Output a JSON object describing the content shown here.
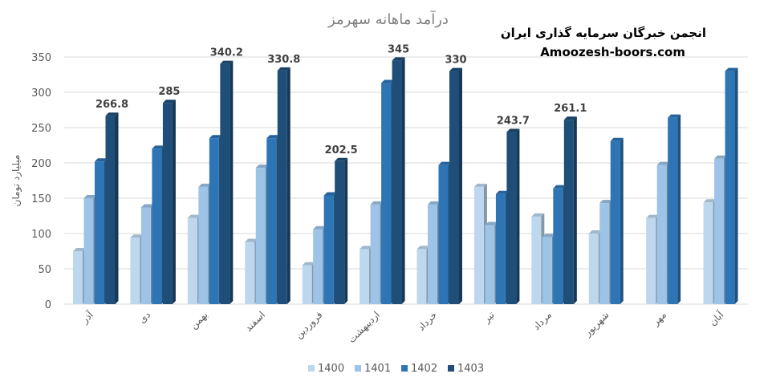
{
  "watermark": {
    "line1": "انجمن خبرگان سرمایه گذاری ایران",
    "line2": "Amoozesh-boors.com"
  },
  "chart_data": {
    "type": "bar",
    "title": "درآمد ماهانه سهرمز",
    "ylabel": "میلیارد تومان",
    "xlabel": "",
    "ylim": [
      0,
      350
    ],
    "yticks": [
      0,
      50,
      100,
      150,
      200,
      250,
      300,
      350
    ],
    "grid": true,
    "legend_position": "bottom",
    "categories": [
      "آذر",
      "دی",
      "بهمن",
      "اسفند",
      "فروردین",
      "اردیبهشت",
      "خرداد",
      "تیر",
      "مرداد",
      "شهریور",
      "مهر",
      "آبان"
    ],
    "series": [
      {
        "name": "1400",
        "color": "#bdd7ee",
        "values": [
          75,
          94,
          122,
          88,
          55,
          78,
          78,
          166,
          124,
          100,
          122,
          144
        ]
      },
      {
        "name": "1401",
        "color": "#9dc3e6",
        "values": [
          150,
          137,
          166,
          193,
          106,
          141,
          141,
          112,
          95,
          143,
          197,
          206
        ]
      },
      {
        "name": "1402",
        "color": "#2e75b6",
        "values": [
          202,
          220,
          235,
          235,
          154,
          313,
          197,
          156,
          164,
          231,
          264,
          330
        ]
      },
      {
        "name": "1403",
        "color": "#1f4e79",
        "values": [
          266.8,
          285,
          340.2,
          330.8,
          202.5,
          345,
          330,
          243.7,
          261.1,
          null,
          null,
          null
        ]
      }
    ],
    "data_labels": [
      "266.8",
      "285",
      "340.2",
      "330.8",
      "202.5",
      "345",
      "330",
      "243.7",
      "261.1",
      null,
      null,
      null
    ]
  }
}
